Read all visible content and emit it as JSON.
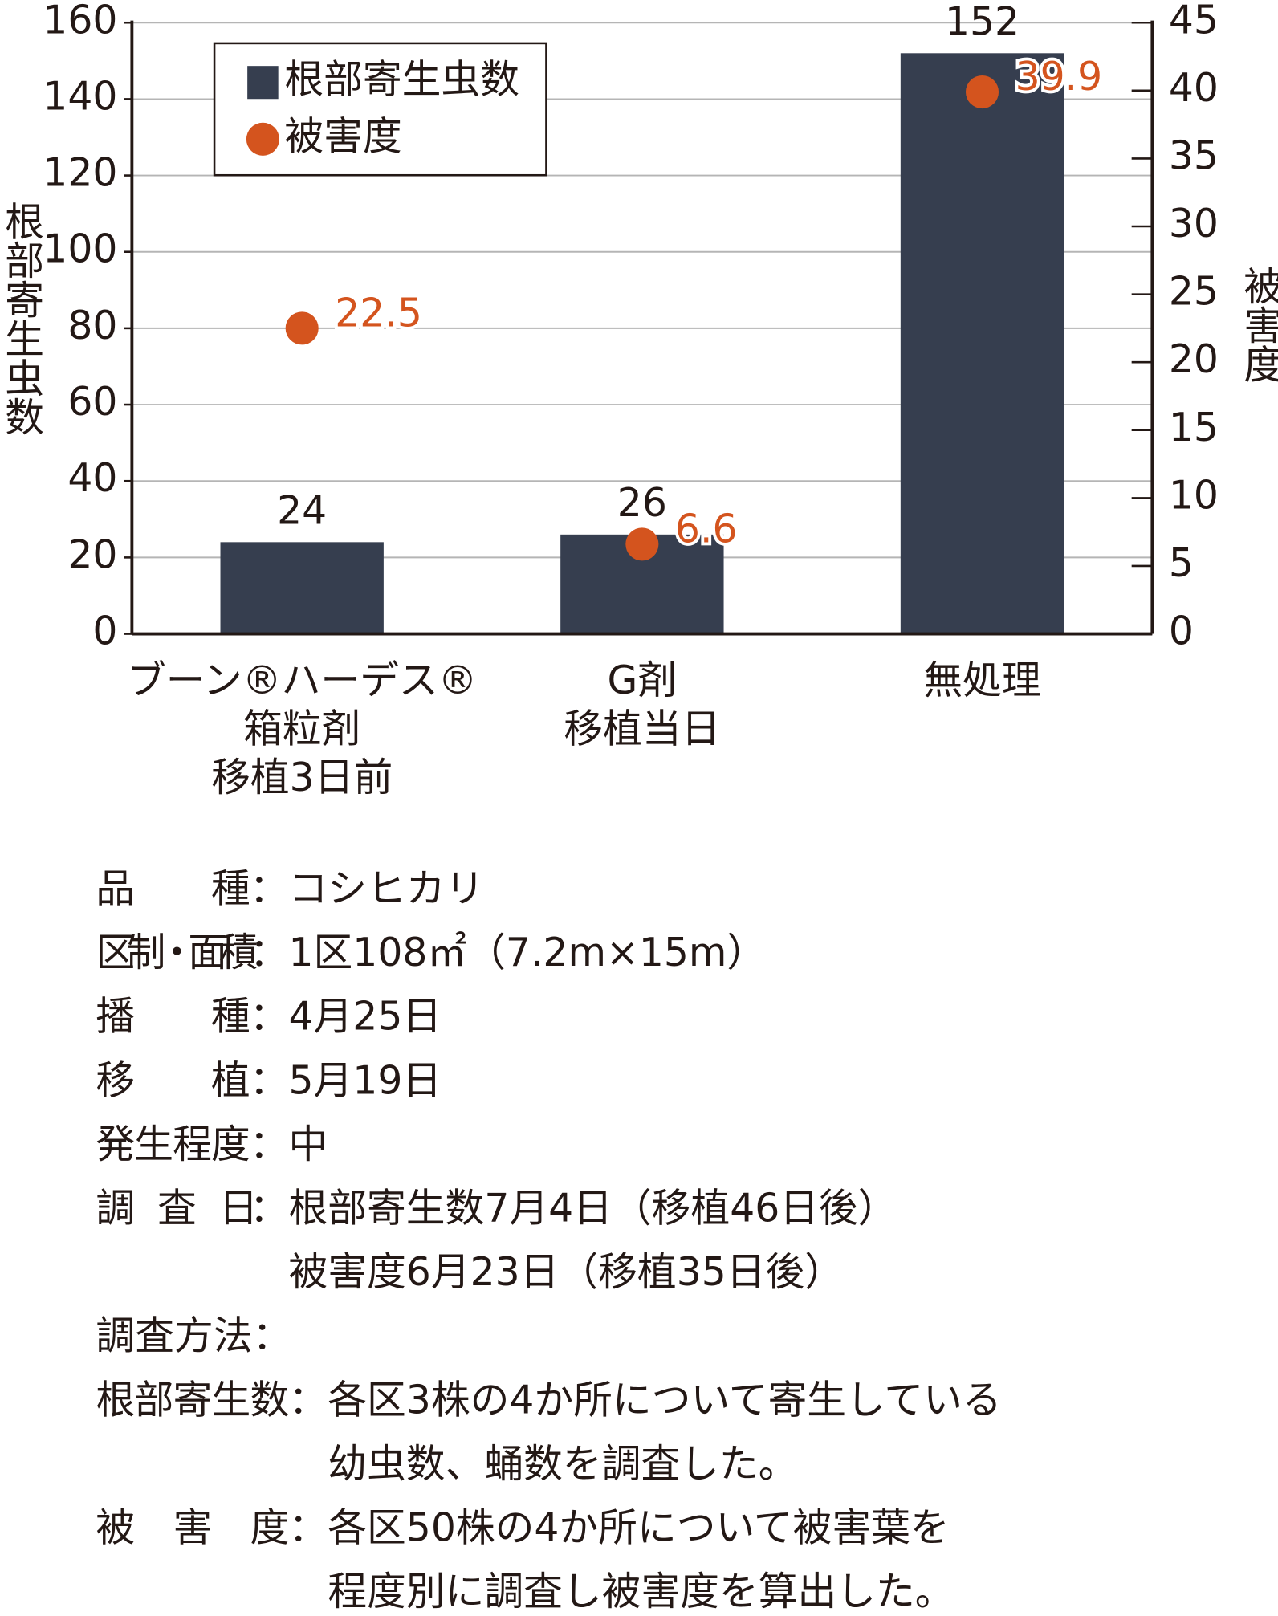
{
  "chart_data": {
    "type": "bar",
    "categories": [
      [
        "ブーン®ハーデス®",
        "箱粒剤",
        "移植3日前"
      ],
      [
        "G剤",
        "移植当日"
      ],
      [
        "無処理"
      ]
    ],
    "series": [
      {
        "name": "根部寄生虫数",
        "type": "bar",
        "color": "#363e4f",
        "values": [
          24,
          26,
          152
        ]
      },
      {
        "name": "被害度",
        "type": "scatter",
        "axis": "y2",
        "color": "#d4541e",
        "values": [
          22.5,
          6.6,
          39.9
        ]
      }
    ],
    "y_label": "根部寄生虫数",
    "y2_label": "被害度",
    "ylim": [
      0,
      160
    ],
    "yticks": [
      0,
      20,
      40,
      60,
      80,
      100,
      120,
      140,
      160
    ],
    "y2lim": [
      0,
      45
    ],
    "y2ticks": [
      0,
      5,
      10,
      15,
      20,
      25,
      30,
      35,
      40,
      45
    ],
    "grid": true,
    "legend": "upper left"
  },
  "notes": {
    "conditions": [
      {
        "label": "品　　種：",
        "lines": [
          "コシヒカリ"
        ]
      },
      {
        "label": "区制・面積：",
        "lines": [
          "1区108㎡（7.2m×15m）"
        ]
      },
      {
        "label": "播　　種：",
        "lines": [
          "4月25日"
        ]
      },
      {
        "label": "移　　植：",
        "lines": [
          "5月19日"
        ]
      },
      {
        "label": "発生程度：",
        "lines": [
          "中"
        ]
      },
      {
        "label": "調　査　日：",
        "lines": [
          "根部寄生数7月4日（移植46日後）",
          "被害度6月23日（移植35日後）"
        ]
      }
    ],
    "method": {
      "label": "調査方法：",
      "items": [
        {
          "label": "根部寄生数：",
          "lines": [
            "各区3株の4か所について寄生している",
            "幼虫数、蛹数を調査した。"
          ]
        },
        {
          "label": "被　害　度：",
          "lines": [
            "各区50株の4か所について被害葉を",
            "程度別に調査し被害度を算出した。"
          ]
        }
      ]
    }
  }
}
